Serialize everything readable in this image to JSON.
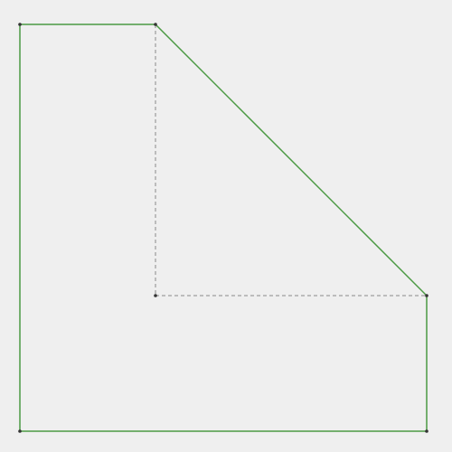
{
  "colors": {
    "background": "#efefef",
    "outline": "#4c9a44",
    "guide": "#888888",
    "vertex": "#333333"
  }
}
